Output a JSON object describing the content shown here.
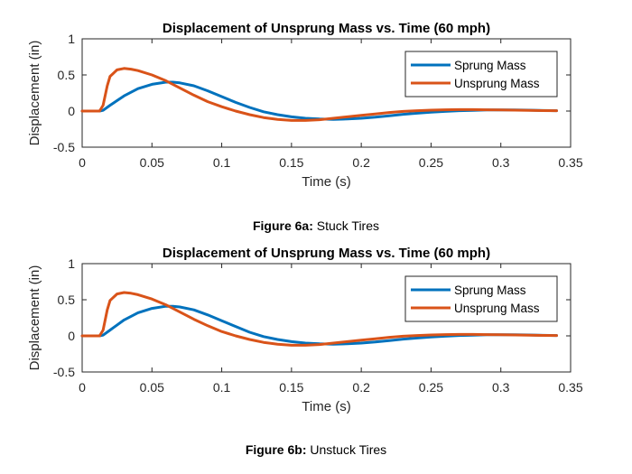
{
  "colors": {
    "sprung": "#0072BD",
    "unsprung": "#D95319",
    "axis": "#262626"
  },
  "captions": [
    {
      "label": "Figure 6a:",
      "text": " Stuck Tires"
    },
    {
      "label": "Figure 6b:",
      "text": " Unstuck Tires"
    }
  ],
  "chart_data": [
    {
      "type": "line",
      "title": "Displacement of Unsprung Mass vs. Time (60 mph)",
      "xlabel": "Time (s)",
      "ylabel": "Displacement (in)",
      "xlim": [
        0,
        0.35
      ],
      "ylim": [
        -0.5,
        1
      ],
      "xticks": [
        "0",
        "0.05",
        "0.1",
        "0.15",
        "0.2",
        "0.25",
        "0.3",
        "0.35"
      ],
      "yticks": [
        "-0.5",
        "0",
        "0.5",
        "1"
      ],
      "grid": false,
      "legend": "top-right",
      "series": [
        {
          "name": "Sprung Mass",
          "x": [
            0,
            0.01,
            0.0125,
            0.015,
            0.02,
            0.03,
            0.04,
            0.05,
            0.06,
            0.065,
            0.07,
            0.08,
            0.09,
            0.1,
            0.11,
            0.12,
            0.13,
            0.14,
            0.15,
            0.16,
            0.17,
            0.18,
            0.19,
            0.2,
            0.21,
            0.22,
            0.23,
            0.24,
            0.25,
            0.26,
            0.27,
            0.28,
            0.29,
            0.3,
            0.31,
            0.32,
            0.33,
            0.34
          ],
          "y": [
            0,
            0,
            0,
            0.01,
            0.08,
            0.21,
            0.31,
            0.37,
            0.4,
            0.4,
            0.39,
            0.35,
            0.28,
            0.2,
            0.12,
            0.05,
            -0.01,
            -0.05,
            -0.08,
            -0.1,
            -0.11,
            -0.115,
            -0.11,
            -0.1,
            -0.085,
            -0.065,
            -0.045,
            -0.03,
            -0.015,
            -0.005,
            0.005,
            0.01,
            0.015,
            0.015,
            0.015,
            0.012,
            0.008,
            0.005
          ]
        },
        {
          "name": "Unsprung Mass",
          "x": [
            0,
            0.0125,
            0.015,
            0.018,
            0.02,
            0.025,
            0.03,
            0.035,
            0.04,
            0.05,
            0.06,
            0.07,
            0.08,
            0.09,
            0.1,
            0.11,
            0.12,
            0.13,
            0.14,
            0.15,
            0.16,
            0.17,
            0.18,
            0.19,
            0.2,
            0.21,
            0.22,
            0.23,
            0.24,
            0.25,
            0.26,
            0.27,
            0.28,
            0.29,
            0.3,
            0.31,
            0.32,
            0.33,
            0.34
          ],
          "y": [
            0,
            0,
            0.08,
            0.35,
            0.48,
            0.57,
            0.59,
            0.58,
            0.56,
            0.5,
            0.42,
            0.32,
            0.22,
            0.13,
            0.06,
            0.0,
            -0.05,
            -0.09,
            -0.115,
            -0.13,
            -0.13,
            -0.12,
            -0.1,
            -0.08,
            -0.06,
            -0.04,
            -0.02,
            -0.005,
            0.005,
            0.012,
            0.017,
            0.02,
            0.02,
            0.018,
            0.015,
            0.012,
            0.009,
            0.006,
            0.005
          ]
        }
      ]
    },
    {
      "type": "line",
      "title": "Displacement of Unsprung Mass vs. Time (60 mph)",
      "xlabel": "Time (s)",
      "ylabel": "Displacement (in)",
      "xlim": [
        0,
        0.35
      ],
      "ylim": [
        -0.5,
        1
      ],
      "xticks": [
        "0",
        "0.05",
        "0.1",
        "0.15",
        "0.2",
        "0.25",
        "0.3",
        "0.35"
      ],
      "yticks": [
        "-0.5",
        "0",
        "0.5",
        "1"
      ],
      "grid": false,
      "legend": "top-right",
      "series": [
        {
          "name": "Sprung Mass",
          "x": [
            0,
            0.01,
            0.0125,
            0.015,
            0.02,
            0.03,
            0.04,
            0.05,
            0.06,
            0.065,
            0.07,
            0.08,
            0.09,
            0.1,
            0.11,
            0.12,
            0.13,
            0.14,
            0.15,
            0.16,
            0.17,
            0.18,
            0.19,
            0.2,
            0.21,
            0.22,
            0.23,
            0.24,
            0.25,
            0.26,
            0.27,
            0.28,
            0.29,
            0.3,
            0.31,
            0.32,
            0.33,
            0.34
          ],
          "y": [
            0,
            0,
            0,
            0.01,
            0.08,
            0.22,
            0.32,
            0.38,
            0.41,
            0.41,
            0.4,
            0.36,
            0.29,
            0.21,
            0.13,
            0.05,
            -0.01,
            -0.05,
            -0.08,
            -0.1,
            -0.11,
            -0.115,
            -0.11,
            -0.1,
            -0.085,
            -0.065,
            -0.045,
            -0.03,
            -0.015,
            -0.005,
            0.005,
            0.01,
            0.015,
            0.015,
            0.015,
            0.012,
            0.008,
            0.005
          ]
        },
        {
          "name": "Unsprung Mass",
          "x": [
            0,
            0.0125,
            0.015,
            0.018,
            0.02,
            0.025,
            0.03,
            0.035,
            0.04,
            0.05,
            0.06,
            0.07,
            0.08,
            0.09,
            0.1,
            0.11,
            0.12,
            0.13,
            0.14,
            0.15,
            0.16,
            0.17,
            0.18,
            0.19,
            0.2,
            0.21,
            0.22,
            0.23,
            0.24,
            0.25,
            0.26,
            0.27,
            0.28,
            0.29,
            0.3,
            0.31,
            0.32,
            0.33,
            0.34
          ],
          "y": [
            0,
            0,
            0.08,
            0.36,
            0.49,
            0.58,
            0.6,
            0.59,
            0.57,
            0.51,
            0.43,
            0.33,
            0.23,
            0.14,
            0.06,
            0.0,
            -0.05,
            -0.09,
            -0.115,
            -0.13,
            -0.13,
            -0.12,
            -0.1,
            -0.08,
            -0.06,
            -0.04,
            -0.02,
            -0.005,
            0.005,
            0.012,
            0.017,
            0.02,
            0.02,
            0.018,
            0.015,
            0.012,
            0.009,
            0.006,
            0.005
          ]
        }
      ]
    }
  ]
}
